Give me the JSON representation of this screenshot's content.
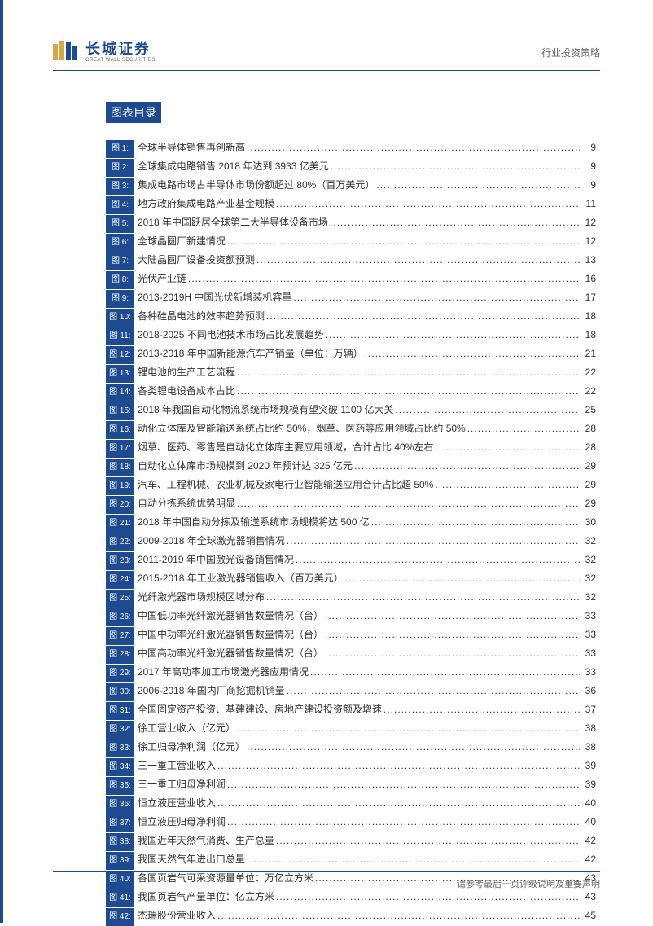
{
  "header": {
    "logo_main": "长城证券",
    "logo_sub": "GREAT WALL SECURITIES",
    "right_text": "行业投资策略"
  },
  "section_title": "图表目录",
  "toc": [
    {
      "label": "图 1:",
      "title": "全球半导体销售再创新高",
      "page": "9"
    },
    {
      "label": "图 2:",
      "title": "全球集成电路销售 2018 年达到 3933 亿美元",
      "page": "9"
    },
    {
      "label": "图 3:",
      "title": "集成电路市场占半导体市场份额超过 80%（百万美元）",
      "page": "9"
    },
    {
      "label": "图 4:",
      "title": "地方政府集成电路产业基金规模",
      "page": "11"
    },
    {
      "label": "图 5:",
      "title": "2018 年中国跃居全球第二大半导体设备市场",
      "page": "12"
    },
    {
      "label": "图 6:",
      "title": "全球晶圆厂新建情况",
      "page": "12"
    },
    {
      "label": "图 7:",
      "title": "大陆晶圆厂设备投资额预测",
      "page": "13"
    },
    {
      "label": "图 8:",
      "title": "光伏产业链",
      "page": "16"
    },
    {
      "label": "图 9:",
      "title": "2013-2019H 中国光伏新增装机容量",
      "page": "17"
    },
    {
      "label": "图 10:",
      "title": "各种硅晶电池的效率趋势预测",
      "page": "18"
    },
    {
      "label": "图 11:",
      "title": "2018-2025 不同电池技术市场占比发展趋势",
      "page": "18"
    },
    {
      "label": "图 12:",
      "title": "2013-2018 年中国新能源汽车产销量（单位：万辆）",
      "page": "21"
    },
    {
      "label": "图 13:",
      "title": "锂电池的生产工艺流程",
      "page": "22"
    },
    {
      "label": "图 14:",
      "title": "各类锂电设备成本占比",
      "page": "22"
    },
    {
      "label": "图 15:",
      "title": "2018 年我国自动化物流系统市场规模有望突破 1100 亿大关",
      "page": "25"
    },
    {
      "label": "图 16:",
      "title": "动化立体库及智能输送系统占比约 50%，烟草、医药等应用领域占比约 50%",
      "page": "28"
    },
    {
      "label": "图 17:",
      "title": "烟草、医药、零售是自动化立体库主要应用领域，合计占比 40%左右",
      "page": "28"
    },
    {
      "label": "图 18:",
      "title": "自动化立体库市场规模到 2020 年预计达 325 亿元",
      "page": "29"
    },
    {
      "label": "图 19:",
      "title": "汽车、工程机械、农业机械及家电行业智能输送应用合计占比超 50%",
      "page": "29"
    },
    {
      "label": "图 20:",
      "title": "自动分拣系统优势明显",
      "page": "29"
    },
    {
      "label": "图 21:",
      "title": "2018 年中国自动分拣及输送系统市场规模将达 500 亿",
      "page": "30"
    },
    {
      "label": "图 22:",
      "title": "2009-2018 年全球激光器销售情况",
      "page": "32"
    },
    {
      "label": "图 23:",
      "title": "2011-2019 年中国激光设备销售情况",
      "page": "32"
    },
    {
      "label": "图 24:",
      "title": "2015-2018 年工业激光器销售收入（百万美元）",
      "page": "32"
    },
    {
      "label": "图 25:",
      "title": "光纤激光器市场规模区域分布",
      "page": "32"
    },
    {
      "label": "图 26:",
      "title": "中国低功率光纤激光器销售数量情况（台）",
      "page": "33"
    },
    {
      "label": "图 27:",
      "title": "中国中功率光纤激光器销售数量情况（台）",
      "page": "33"
    },
    {
      "label": "图 28:",
      "title": "中国高功率光纤激光器销售数量情况（台）",
      "page": "33"
    },
    {
      "label": "图 29:",
      "title": "2017 年高功率加工市场激光器应用情况",
      "page": "33"
    },
    {
      "label": "图 30:",
      "title": "2006-2018 年国内厂商挖掘机销量",
      "page": "36"
    },
    {
      "label": "图 31:",
      "title": "全国固定资产投资、基建建设、房地产建设投资额及增速",
      "page": "37"
    },
    {
      "label": "图 32:",
      "title": "徐工营业收入（亿元）",
      "page": "38"
    },
    {
      "label": "图 33:",
      "title": "徐工归母净利润（亿元）",
      "page": "38"
    },
    {
      "label": "图 34:",
      "title": "三一重工营业收入",
      "page": "39"
    },
    {
      "label": "图 35:",
      "title": "三一重工归母净利润",
      "page": "39"
    },
    {
      "label": "图 36:",
      "title": "恒立液压营业收入",
      "page": "40"
    },
    {
      "label": "图 37:",
      "title": "恒立液压归母净利润",
      "page": "40"
    },
    {
      "label": "图 38:",
      "title": "我国近年天然气消费、生产总量",
      "page": "42"
    },
    {
      "label": "图 39:",
      "title": "我国天然气年进出口总量",
      "page": "42"
    },
    {
      "label": "图 40:",
      "title": "各国页岩气可采资源量单位：万亿立方米",
      "page": "43"
    },
    {
      "label": "图 41:",
      "title": "我国页岩气产量单位：亿立方米",
      "page": "43"
    },
    {
      "label": "图 42:",
      "title": "杰瑞股份营业收入",
      "page": "45"
    }
  ],
  "footer": {
    "text": "请参考最后一页评级说明及重要声明"
  }
}
